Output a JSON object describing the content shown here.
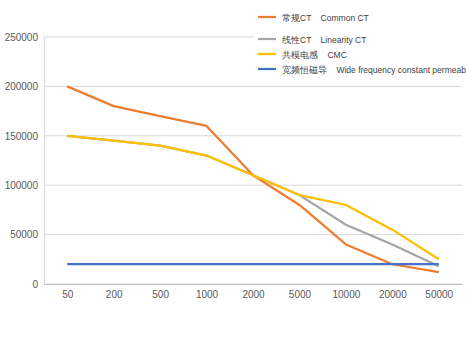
{
  "chart_data": {
    "type": "line",
    "categories": [
      "50",
      "200",
      "500",
      "1000",
      "2000",
      "5000",
      "10000",
      "20000",
      "50000"
    ],
    "series": [
      {
        "name": "常规CT    Common CT",
        "color": "#ed7d31",
        "values": [
          200000,
          180000,
          170000,
          160000,
          110000,
          80000,
          40000,
          20000,
          12000
        ]
      },
      {
        "name": "线性CT    Linearity CT",
        "color": "#a5a5a5",
        "values": [
          150000,
          145000,
          140000,
          130000,
          110000,
          90000,
          60000,
          40000,
          18000
        ]
      },
      {
        "name": "共模电感    CMC",
        "color": "#ffc000",
        "values": [
          150000,
          145000,
          140000,
          130000,
          110000,
          90000,
          80000,
          55000,
          25000
        ]
      },
      {
        "name": "宽频恒磁导    Wide frequency constant permeability",
        "color": "#4472c4",
        "values": [
          20000,
          20000,
          20000,
          20000,
          20000,
          20000,
          20000,
          20000,
          20000
        ]
      }
    ],
    "ylim": [
      0,
      250000
    ],
    "yticks": [
      0,
      50000,
      100000,
      150000,
      200000,
      250000
    ],
    "grid": true,
    "legend": "upper right"
  }
}
